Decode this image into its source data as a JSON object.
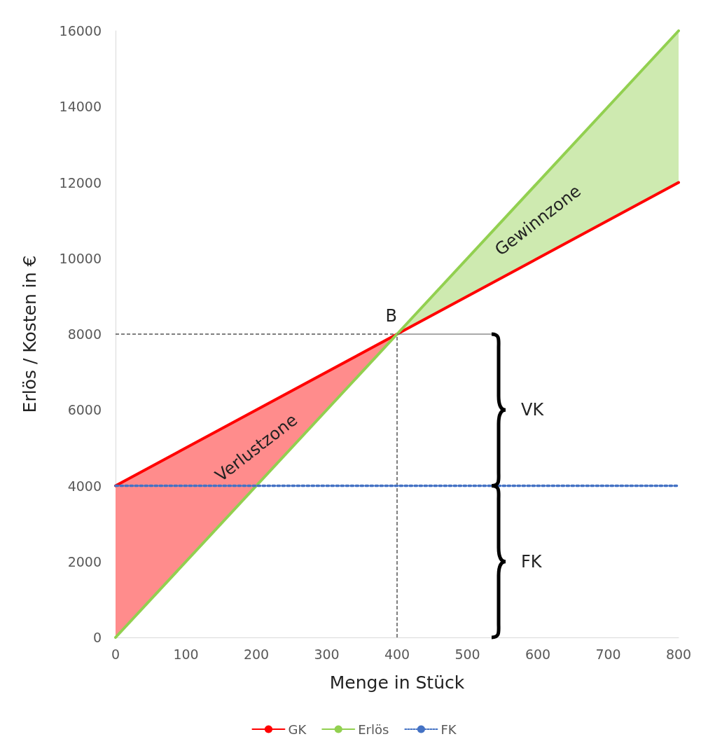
{
  "chart_data": {
    "type": "line",
    "xlabel": "Menge in Stück",
    "ylabel": "Erlös / Kosten in €",
    "xlim": [
      0,
      800
    ],
    "xticks": [
      0,
      100,
      200,
      300,
      400,
      500,
      600,
      700,
      800
    ],
    "ylim": [
      0,
      16000
    ],
    "yticks": [
      0,
      2000,
      4000,
      6000,
      8000,
      10000,
      12000,
      14000,
      16000
    ],
    "grid": false,
    "legend": "bottom",
    "marker": "none",
    "series": [
      {
        "name": "GK",
        "color": "#ff0000",
        "x": [
          0,
          400,
          800
        ],
        "values": [
          4000,
          8000,
          12000
        ],
        "lower": [
          0,
          8000,
          null
        ],
        "upper": [
          4000,
          8000,
          null
        ],
        "line_style": "solid"
      },
      {
        "name": "Erlös",
        "color": "#92d050",
        "x": [
          0,
          400,
          800
        ],
        "values": [
          0,
          8000,
          16000
        ],
        "lower": [
          null,
          8000,
          12000
        ],
        "upper": [
          null,
          8000,
          16000
        ],
        "line_style": "solid"
      },
      {
        "name": "FK",
        "color": "#4472c4",
        "x": [
          0,
          800
        ],
        "values": [
          4000,
          4000
        ],
        "line_style": "dotted"
      }
    ],
    "ref_lines": [
      {
        "axis": "y",
        "value": 8000,
        "line_style": "dashed",
        "color": "#000000"
      },
      {
        "axis": "x",
        "value": 400,
        "line_style": "dashed",
        "color": "#000000"
      }
    ],
    "annotations": [
      "Verlustzone",
      "Gewinnzone",
      "B",
      "VK",
      "FK"
    ]
  }
}
